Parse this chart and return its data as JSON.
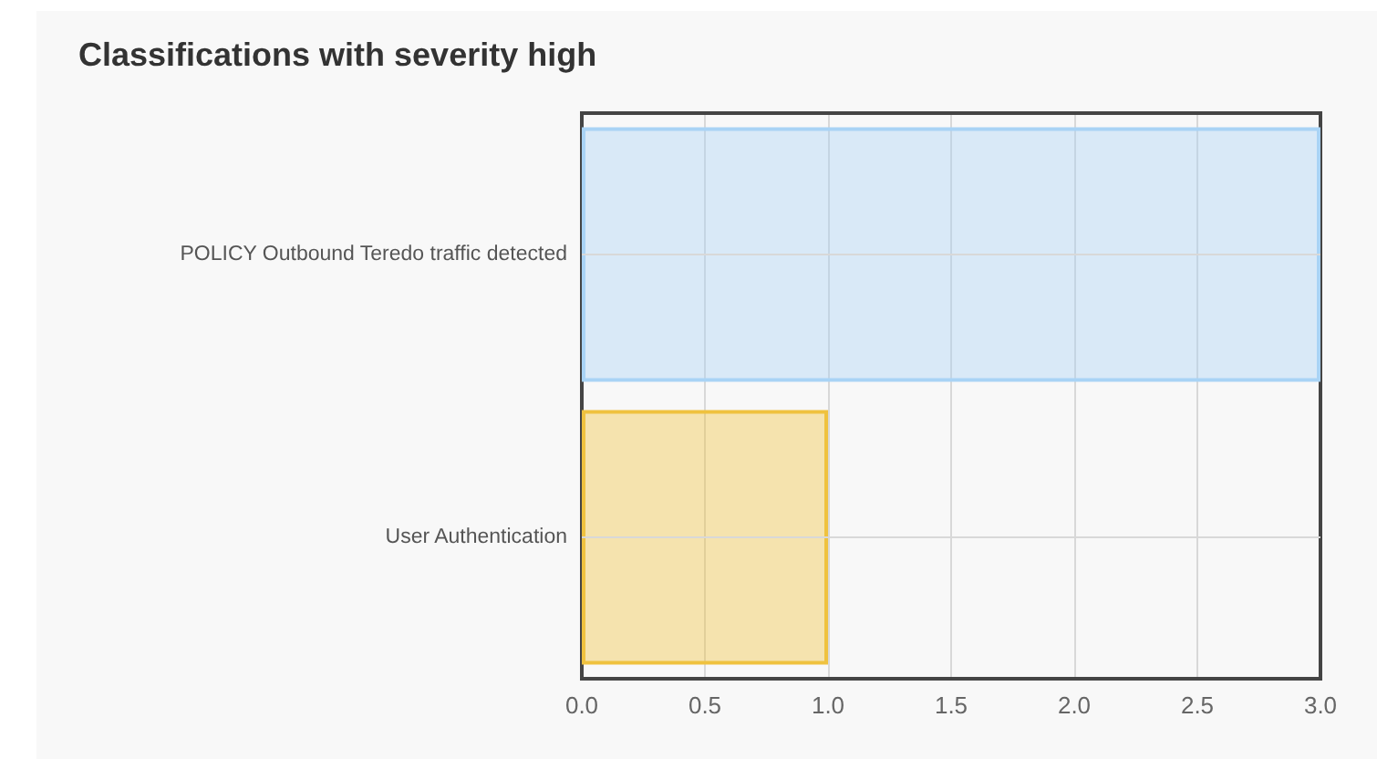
{
  "chart_data": {
    "type": "bar",
    "title": "Classifications with severity high",
    "orientation": "horizontal",
    "categories": [
      "POLICY Outbound Teredo traffic detected",
      "User Authentication"
    ],
    "values": [
      3,
      1
    ],
    "colors": [
      "#a9d3f5",
      "#efc23f"
    ],
    "xlim": [
      0,
      3
    ],
    "xticks": [
      {
        "value": 0,
        "label": "0.0"
      },
      {
        "value": 0.5,
        "label": "0.5"
      },
      {
        "value": 1,
        "label": "1.0"
      },
      {
        "value": 1.5,
        "label": "1.5"
      },
      {
        "value": 2,
        "label": "2.0"
      },
      {
        "value": 2.5,
        "label": "2.5"
      },
      {
        "value": 3,
        "label": "3.0"
      }
    ],
    "grid": true
  }
}
